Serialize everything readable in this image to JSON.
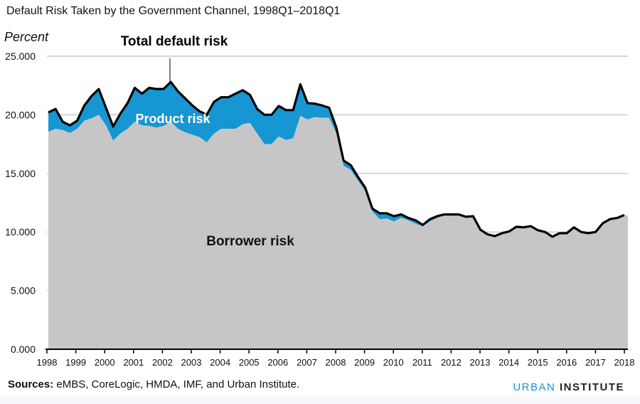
{
  "chart_data": {
    "type": "area",
    "title": "Default Risk Taken by the Government Channel, 1998Q1–2018Q1",
    "ylabel": "Percent",
    "xlabel": "",
    "x_start": "1998Q1",
    "x_end": "2018Q1",
    "frequency": "quarterly",
    "ylim": [
      0,
      25
    ],
    "yticks": [
      "0.000",
      "5.000",
      "10.000",
      "15.000",
      "20.000",
      "25.000"
    ],
    "xticks": [
      "1998",
      "1999",
      "2000",
      "2001",
      "2002",
      "2003",
      "2004",
      "2005",
      "2006",
      "2007",
      "2008",
      "2009",
      "2010",
      "2011",
      "2012",
      "2013",
      "2014",
      "2015",
      "2016",
      "2017",
      "2018"
    ],
    "grid": "horizontal",
    "stacked": true,
    "series": [
      {
        "name": "Borrower risk",
        "color": "#c6c6c6",
        "values": [
          18.55,
          18.8,
          18.7,
          18.45,
          18.8,
          19.5,
          19.7,
          20.0,
          19.1,
          17.8,
          18.4,
          18.8,
          19.4,
          19.1,
          19.05,
          18.9,
          19.05,
          19.4,
          18.8,
          18.5,
          18.3,
          18.1,
          17.65,
          18.4,
          18.8,
          18.8,
          18.8,
          19.2,
          19.3,
          18.4,
          17.5,
          17.5,
          18.15,
          17.85,
          18.0,
          19.9,
          19.6,
          19.8,
          19.75,
          19.75,
          18.4,
          15.65,
          15.3,
          14.4,
          13.5,
          11.75,
          11.1,
          11.15,
          10.9,
          11.2,
          11.0,
          10.7,
          10.5,
          10.9,
          11.2,
          11.45,
          11.45,
          11.45,
          11.25,
          11.3,
          10.17,
          9.77,
          9.62,
          9.87,
          10.02,
          10.42,
          10.37,
          10.47,
          10.12,
          9.97,
          9.57,
          9.87,
          9.87,
          10.37,
          9.97,
          9.87,
          9.97,
          10.72,
          11.07,
          11.17,
          11.42
        ]
      },
      {
        "name": "Product risk",
        "color": "#1696d2"
      }
    ],
    "total": {
      "name": "Total default risk",
      "color": "#000000",
      "values": [
        20.2,
        20.5,
        19.4,
        19.1,
        19.5,
        20.8,
        21.6,
        22.2,
        20.6,
        19.0,
        20.1,
        21.0,
        22.3,
        21.8,
        22.3,
        22.2,
        22.2,
        22.8,
        22.0,
        21.4,
        20.8,
        20.3,
        20.0,
        21.1,
        21.5,
        21.5,
        21.8,
        22.1,
        21.7,
        20.5,
        20.0,
        20.0,
        20.75,
        20.4,
        20.4,
        22.6,
        21.0,
        20.95,
        20.8,
        20.6,
        18.9,
        16.1,
        15.7,
        14.7,
        13.8,
        12.0,
        11.6,
        11.6,
        11.35,
        11.5,
        11.2,
        11.0,
        10.6,
        11.1,
        11.35,
        11.5,
        11.5,
        11.5,
        11.3,
        11.35,
        10.2,
        9.8,
        9.65,
        9.9,
        10.05,
        10.45,
        10.4,
        10.5,
        10.15,
        10.0,
        9.6,
        9.9,
        9.9,
        10.4,
        10.0,
        9.9,
        10.0,
        10.75,
        11.1,
        11.2,
        11.45
      ]
    },
    "annotations": {
      "total": "Total default risk",
      "product": "Product risk",
      "borrower": "Borrower risk"
    }
  },
  "footer": {
    "sources_label": "Sources:",
    "sources_text": " eMBS, CoreLogic, HMDA, IMF, and Urban Institute."
  },
  "logo": {
    "part1": "URBAN",
    "part2": "INSTITUTE",
    "color": "#1696d2"
  }
}
